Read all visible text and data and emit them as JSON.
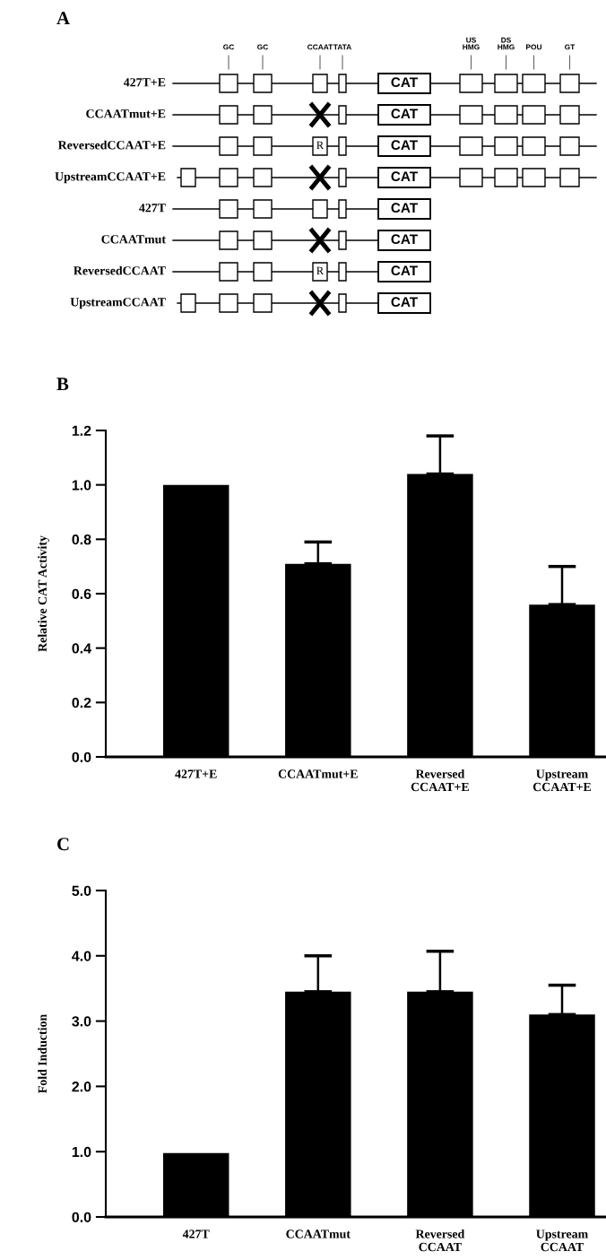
{
  "chart_data": [
    {
      "type": "other",
      "title": "A",
      "categories": [
        "427T+E",
        "CCAATmut+E",
        "ReversedCCAAT+E",
        "UpstreamCCAAT+E",
        "427T",
        "CCAATmut",
        "ReversedCCAAT",
        "UpstreamCCAAT"
      ],
      "annotations": [
        "GC",
        "GC",
        "CCAAT",
        "TATA",
        "US\nHMG",
        "DS\nHMG",
        "POU",
        "GT",
        "CAT",
        "R"
      ]
    },
    {
      "type": "bar",
      "title": "B",
      "ylabel": "Relative CAT Activity",
      "categories": [
        "427T+E",
        "CCAATmut+E",
        "Reversed\nCCAAT+E",
        "Upstream\nCCAAT+E"
      ],
      "values": [
        1.0,
        0.71,
        1.04,
        0.56
      ],
      "errors": [
        null,
        [
          0.71,
          0.79
        ],
        [
          1.04,
          1.18
        ],
        [
          0.56,
          0.7
        ]
      ],
      "color": "#000000",
      "ylim": [
        0,
        1.2
      ],
      "yticks": [
        {
          "value": 0,
          "label": "0.0"
        },
        {
          "value": 0.2,
          "label": "0.2"
        },
        {
          "value": 0.4,
          "label": "0.4"
        },
        {
          "value": 0.6,
          "label": "0.6"
        },
        {
          "value": 0.8,
          "label": "0.8"
        },
        {
          "value": 1.0,
          "label": "1.0"
        },
        {
          "value": 1.2,
          "label": "1.2"
        }
      ],
      "grid": false,
      "legend": false
    },
    {
      "type": "bar",
      "title": "C",
      "ylabel": "Fold Induction",
      "categories": [
        "427T",
        "CCAATmut",
        "Reversed\nCCAAT",
        "Upstream\nCCAAT"
      ],
      "values": [
        0.98,
        3.45,
        3.45,
        3.1
      ],
      "errors": [
        null,
        [
          3.45,
          4.0
        ],
        [
          3.45,
          4.07
        ],
        [
          3.1,
          3.55
        ]
      ],
      "color": "#000000",
      "ylim": [
        0,
        5
      ],
      "yticks": [
        {
          "value": 0,
          "label": "0.0"
        },
        {
          "value": 1,
          "label": "1.0"
        },
        {
          "value": 2,
          "label": "2.0"
        },
        {
          "value": 3,
          "label": "3.0"
        },
        {
          "value": 4,
          "label": "4.0"
        },
        {
          "value": 5,
          "label": "5.0"
        }
      ],
      "grid": false,
      "legend": false
    }
  ]
}
